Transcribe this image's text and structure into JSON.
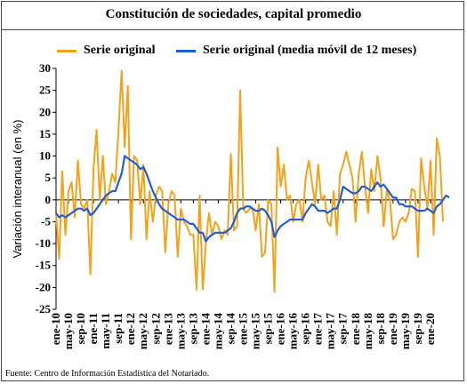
{
  "source": "Fuente: Centro de Información Estadística del Notariado.",
  "chart_data": {
    "type": "line",
    "title": "Constitución de sociedades, capital promedio",
    "ylabel": "Variación interanual (en %)",
    "ylim": [
      -25,
      30
    ],
    "yticks": [
      -25,
      -20,
      -15,
      -10,
      -5,
      0,
      5,
      10,
      15,
      20,
      25,
      30
    ],
    "xticks": [
      "ene-10",
      "may-10",
      "sep-10",
      "ene-11",
      "may-11",
      "sep-11",
      "ene-12",
      "may-12",
      "sep-12",
      "ene-13",
      "may-13",
      "sep-13",
      "ene-14",
      "may-14",
      "sep-14",
      "ene-15",
      "may-15",
      "sep-15",
      "ene-16",
      "may-16",
      "sep-16",
      "ene-17",
      "may-17",
      "sep-17",
      "ene-18",
      "may-18",
      "sep-18",
      "ene-19",
      "may-19",
      "sep-19",
      "ene-20"
    ],
    "grid": false,
    "legend": "top",
    "series": [
      {
        "name": "Serie original",
        "color": "#F5A21B",
        "values": [
          -3,
          -13.5,
          6.5,
          -8,
          2,
          4,
          -4,
          9,
          -1,
          -2,
          0,
          -17,
          7,
          16,
          0,
          10,
          -1,
          2,
          6,
          4,
          16,
          29.5,
          12,
          26,
          -9,
          10,
          9,
          -1,
          8,
          -9,
          2,
          -5,
          1,
          3,
          2,
          -12,
          -1,
          2,
          1,
          -13,
          -2,
          -5,
          -6,
          -8,
          -8,
          -20.5,
          1,
          -20.5,
          -10,
          -3,
          -8,
          -5,
          -6,
          -9,
          -7,
          -8,
          10.5,
          -7,
          -6,
          25,
          -2,
          -3,
          -2,
          -2,
          -7,
          -1,
          -13,
          -12,
          0,
          -1,
          -21,
          12,
          3,
          8,
          0,
          1,
          -5,
          -1,
          0,
          -5,
          5,
          9,
          4,
          -1,
          8,
          0,
          1,
          -5,
          -6,
          2,
          -8,
          6,
          8,
          11,
          8,
          5,
          -5,
          6,
          11,
          3,
          -3,
          7,
          2,
          10,
          5,
          -6,
          2,
          0,
          -9,
          -8,
          -5,
          -4,
          -5,
          -3,
          2.5,
          2,
          -13,
          9.5,
          3,
          -2,
          9,
          -8,
          14,
          10,
          -5
        ]
      },
      {
        "name": "Serie original (media móvil de 12 meses)",
        "color": "#1F5FD2",
        "values": [
          -3,
          -4,
          -3.5,
          -4,
          -3.5,
          -3,
          -2.5,
          -2,
          -2,
          -2.5,
          -2,
          -3.5,
          -3,
          -2,
          -1,
          0,
          1,
          1.5,
          2,
          2,
          4,
          6,
          10,
          9.5,
          9,
          8.5,
          8,
          7,
          7.5,
          6,
          4,
          2,
          0.5,
          -1,
          -2,
          -2.5,
          -3,
          -3.5,
          -4,
          -4.5,
          -4.5,
          -4.5,
          -5,
          -5.5,
          -5.5,
          -6.5,
          -7.5,
          -7.5,
          -9.5,
          -8.5,
          -8,
          -7.5,
          -7.5,
          -7.5,
          -7.5,
          -7,
          -6.5,
          -5,
          -3,
          -2,
          -2,
          -1.5,
          -1.5,
          -2,
          -2.5,
          -2.5,
          -2,
          -2.5,
          -3.5,
          -5,
          -8.5,
          -7,
          -6,
          -5.5,
          -5,
          -4.5,
          -4.5,
          -4.5,
          -4.5,
          -4.5,
          -3,
          -2,
          -1,
          -1.5,
          -2.5,
          -2.5,
          -2.5,
          -3,
          -2.5,
          -2,
          -2,
          0,
          3,
          2.5,
          2,
          1.5,
          1.5,
          2,
          3,
          3,
          2.5,
          2,
          3,
          4,
          3,
          3.5,
          2.5,
          1.5,
          0.5,
          0.5,
          -1,
          -1,
          -1.5,
          -1.5,
          -1.5,
          -2,
          -2.5,
          -2.5,
          -2.5,
          -2,
          -2.5,
          -3,
          -1.5,
          -1,
          0,
          1,
          0.5
        ]
      }
    ]
  }
}
